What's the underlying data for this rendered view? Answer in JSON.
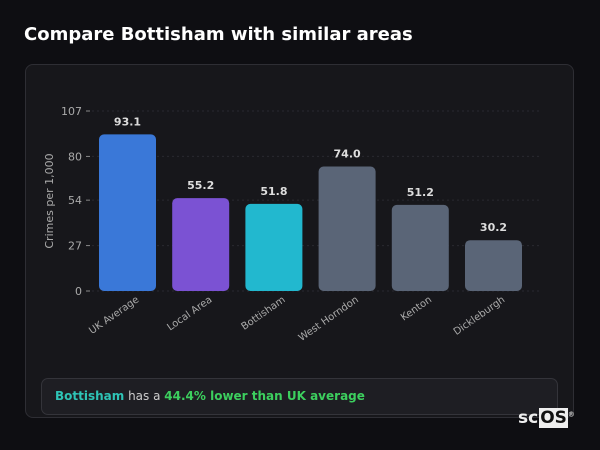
{
  "title": "Compare Bottisham with similar areas",
  "chart_data": {
    "type": "bar",
    "categories": [
      "UK Average",
      "Local Area",
      "Bottisham",
      "West Horndon",
      "Kenton",
      "Dickleburgh"
    ],
    "values": [
      93.1,
      55.2,
      51.8,
      74.0,
      51.2,
      30.2
    ],
    "value_labels": [
      "93.1",
      "55.2",
      "51.8",
      "74.0",
      "51.2",
      "30.2"
    ],
    "colors": [
      "#3a78d8",
      "#7b52d3",
      "#22b8cf",
      "#5a6577",
      "#5a6577",
      "#5a6577"
    ],
    "ylabel": "Crimes per 1,000",
    "yticks": [
      0,
      27,
      54,
      80,
      107
    ],
    "ylim": [
      0,
      107
    ],
    "grid": true
  },
  "summary": {
    "area": "Bottisham",
    "middle": " has a ",
    "highlight": "44.4% lower than UK average"
  },
  "logo": {
    "text": "sc",
    "box": "OS",
    "mark": "®"
  }
}
